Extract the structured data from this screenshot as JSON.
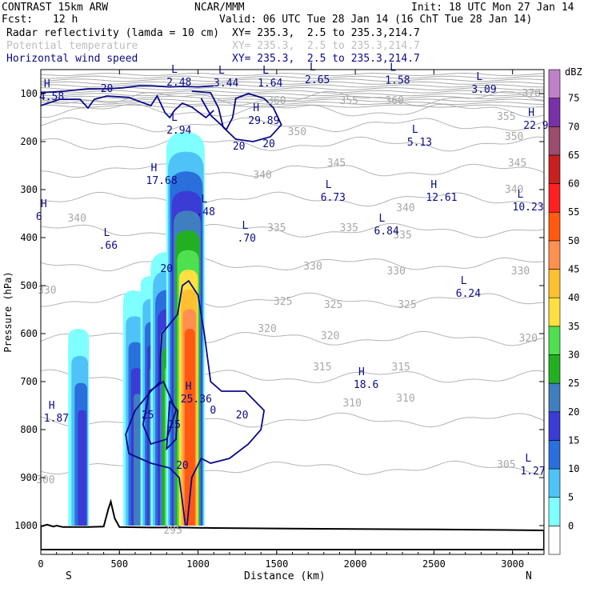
{
  "header": {
    "model": "CONTRAST 15km ARW",
    "org": "NCAR/MMM",
    "init": "Init: 18 UTC Mon 27 Jan 14",
    "fcst_label": "Fcst:",
    "fcst_value": "12 h",
    "valid": "Valid: 06 UTC Tue 28 Jan 14 (16 ChT Tue 28 Jan 14)",
    "fields": [
      {
        "name": "Radar reflectivity (lamda = 10 cm)",
        "xy": "XY= 235.3,  2.5 to 235.3,214.7",
        "style": "black"
      },
      {
        "name": "Potential temperature",
        "xy": "XY= 235.3,  2.5 to 235.3,214.7",
        "style": "grey"
      },
      {
        "name": "Horizontal wind speed",
        "xy": "XY= 235.3,  2.5 to 235.3,214.7",
        "style": "blue"
      }
    ]
  },
  "chart_data": {
    "type": "cross-section",
    "xlabel": "Distance (km)",
    "ylabel": "Pressure (hPa)",
    "xlim": [
      0,
      3200
    ],
    "ylim": [
      1050,
      50
    ],
    "x_ticks": [
      0,
      500,
      1000,
      1500,
      2000,
      2500,
      3000
    ],
    "y_ticks": [
      100,
      200,
      300,
      400,
      500,
      600,
      700,
      800,
      900,
      1000
    ],
    "left_end": "S",
    "right_end": "N",
    "colorbar": {
      "unit": "dBZ",
      "levels": [
        0,
        5,
        10,
        15,
        20,
        25,
        30,
        35,
        40,
        45,
        50,
        55,
        60,
        65,
        70,
        75
      ],
      "colors": [
        "#ffffff",
        "#7fffff",
        "#4fc3f7",
        "#2a6fdc",
        "#3b3bd6",
        "#3f7fbf",
        "#22b022",
        "#4fe04f",
        "#ffe040",
        "#ffc030",
        "#ff9050",
        "#ff5a10",
        "#ff2020",
        "#c8201e",
        "#9c4c6c",
        "#7a30a8",
        "#c080c8"
      ]
    },
    "reflectivity_cells": [
      {
        "x": 240,
        "p_top": 590,
        "p_bot": 1000,
        "max_dbz": 20
      },
      {
        "x": 590,
        "p_top": 510,
        "p_bot": 1000,
        "max_dbz": 25
      },
      {
        "x": 700,
        "p_top": 480,
        "p_bot": 1000,
        "max_dbz": 30
      },
      {
        "x": 810,
        "p_top": 430,
        "p_bot": 1000,
        "max_dbz": 40
      },
      {
        "x": 920,
        "p_top": 180,
        "p_bot": 1000,
        "max_dbz": 55
      }
    ],
    "theta_contours": [
      {
        "label": "355",
        "x": 1960,
        "p": 115
      },
      {
        "label": "360",
        "x": 2250,
        "p": 115
      },
      {
        "label": "355",
        "x": 2960,
        "p": 148
      },
      {
        "label": "360",
        "x": 1500,
        "p": 115
      },
      {
        "label": "370",
        "x": 3120,
        "p": 100
      },
      {
        "label": "350",
        "x": 1630,
        "p": 180
      },
      {
        "label": "350",
        "x": 3010,
        "p": 190
      },
      {
        "label": "345",
        "x": 1880,
        "p": 245
      },
      {
        "label": "345",
        "x": 3030,
        "p": 245
      },
      {
        "label": "340",
        "x": 1410,
        "p": 270
      },
      {
        "label": "340",
        "x": 2320,
        "p": 338
      },
      {
        "label": "340",
        "x": 3010,
        "p": 300
      },
      {
        "label": "340",
        "x": 230,
        "p": 360
      },
      {
        "label": "335",
        "x": 1500,
        "p": 380
      },
      {
        "label": "335",
        "x": 1960,
        "p": 380
      },
      {
        "label": "335",
        "x": 2300,
        "p": 395
      },
      {
        "label": "330",
        "x": 40,
        "p": 510
      },
      {
        "label": "330",
        "x": 1730,
        "p": 460
      },
      {
        "label": "330",
        "x": 2260,
        "p": 470
      },
      {
        "label": "330",
        "x": 3050,
        "p": 470
      },
      {
        "label": "325",
        "x": 1540,
        "p": 533
      },
      {
        "label": "325",
        "x": 1860,
        "p": 540
      },
      {
        "label": "325",
        "x": 2330,
        "p": 540
      },
      {
        "label": "320",
        "x": 1440,
        "p": 590
      },
      {
        "label": "320",
        "x": 1840,
        "p": 605
      },
      {
        "label": "320",
        "x": 3100,
        "p": 610
      },
      {
        "label": "315",
        "x": 1790,
        "p": 670
      },
      {
        "label": "315",
        "x": 2290,
        "p": 670
      },
      {
        "label": "310",
        "x": 1980,
        "p": 745
      },
      {
        "label": "310",
        "x": 2320,
        "p": 735
      },
      {
        "label": "305",
        "x": 2960,
        "p": 873
      },
      {
        "label": "300",
        "x": 30,
        "p": 905
      },
      {
        "label": "295",
        "x": 840,
        "p": 1010
      }
    ],
    "wind_contour_labels": [
      {
        "label": "20",
        "x": 420,
        "p": 90
      },
      {
        "label": "20",
        "x": 1260,
        "p": 210
      },
      {
        "label": "20",
        "x": 1450,
        "p": 205
      },
      {
        "label": "20",
        "x": 800,
        "p": 465
      },
      {
        "label": "20",
        "x": 1280,
        "p": 770
      },
      {
        "label": "20",
        "x": 900,
        "p": 875
      },
      {
        "label": "25",
        "x": 680,
        "p": 770
      },
      {
        "label": "25",
        "x": 850,
        "p": 790
      },
      {
        "label": "0",
        "x": 1095,
        "p": 760
      }
    ],
    "highs_lows": [
      {
        "type": "H",
        "value": "4.58",
        "x": 40,
        "p": 100
      },
      {
        "type": "L",
        "value": "2.48",
        "x": 850,
        "p": 70
      },
      {
        "type": "L",
        "value": "3.44",
        "x": 1150,
        "p": 72
      },
      {
        "type": "L",
        "value": "1.64",
        "x": 1430,
        "p": 72
      },
      {
        "type": "L",
        "value": "2.65",
        "x": 1730,
        "p": 65
      },
      {
        "type": "L",
        "value": "1.58",
        "x": 2240,
        "p": 66
      },
      {
        "type": "L",
        "value": "3.09",
        "x": 2790,
        "p": 85
      },
      {
        "type": "H",
        "value": "29.89",
        "x": 1370,
        "p": 150
      },
      {
        "type": "L",
        "value": "2.94",
        "x": 850,
        "p": 170
      },
      {
        "type": "H",
        "value": "22.9",
        "x": 3120,
        "p": 160
      },
      {
        "type": "L",
        "value": "5.13",
        "x": 2380,
        "p": 195
      },
      {
        "type": "H",
        "value": "17.68",
        "x": 720,
        "p": 275
      },
      {
        "type": "L",
        "value": "6.73",
        "x": 1830,
        "p": 310
      },
      {
        "type": "H",
        "value": "12.61",
        "x": 2500,
        "p": 310
      },
      {
        "type": "L",
        "value": "10.23",
        "x": 3050,
        "p": 330
      },
      {
        "type": "L",
        "value": ".48",
        "x": 1040,
        "p": 340
      },
      {
        "type": "H",
        "value": "6",
        "x": 20,
        "p": 350
      },
      {
        "type": "L",
        "value": "6.84",
        "x": 2170,
        "p": 380
      },
      {
        "type": "L",
        "value": ".66",
        "x": 420,
        "p": 410
      },
      {
        "type": "L",
        "value": ".70",
        "x": 1300,
        "p": 395
      },
      {
        "type": "L",
        "value": "6.24",
        "x": 2690,
        "p": 510
      },
      {
        "type": "H",
        "value": "18.6",
        "x": 2040,
        "p": 700
      },
      {
        "type": "H",
        "value": "25.36",
        "x": 940,
        "p": 730
      },
      {
        "type": "H",
        "value": "1.87",
        "x": 70,
        "p": 770
      },
      {
        "type": "L",
        "value": "1.27",
        "x": 3100,
        "p": 880
      }
    ]
  }
}
